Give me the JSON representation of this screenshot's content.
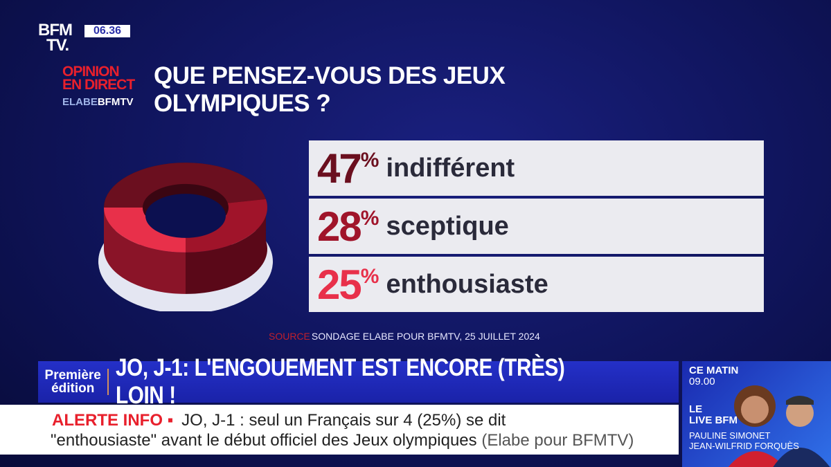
{
  "header": {
    "logo": "BFM TV.",
    "logo_line1": "BFM",
    "logo_line2": "TV.",
    "time": "06.36",
    "segment_line1": "OPINION",
    "segment_line2": "EN DIRECT",
    "partner": "ELABE",
    "partner_brand": "BFMTV",
    "title_line1": "QUE PENSEZ-VOUS DES JEUX",
    "title_line2": "OLYMPIQUES ?"
  },
  "chart_data": {
    "type": "pie",
    "style": "3d-donut",
    "title": "QUE PENSEZ-VOUS DES JEUX OLYMPIQUES ?",
    "categories": [
      "indifférent",
      "sceptique",
      "enthousiaste"
    ],
    "values": [
      47,
      28,
      25
    ],
    "unit": "%",
    "colors": [
      "#6b0f1f",
      "#a0142a",
      "#e8304a"
    ]
  },
  "source": {
    "label": "SOURCE",
    "text": "SONDAGE ELABE POUR BFMTV, 25 JUILLET 2024"
  },
  "banner": {
    "show_line1": "Première",
    "show_line2": "édition",
    "headline": "JO, J-1: L'ENGOUEMENT EST ENCORE (TRÈS) LOIN !"
  },
  "ticker": {
    "label": "ALERTE INFO ▪",
    "line1": "JO, J-1 : seul un Français sur 4 (25%) se dit",
    "line2": "\"enthousiaste\" avant le début officiel des Jeux olympiques",
    "attribution": "(Elabe pour BFMTV)"
  },
  "sidebar": {
    "slot1_title": "CE MATIN",
    "slot1_time": "09.00",
    "slot2_line1": "LE",
    "slot2_line2": "LIVE BFM",
    "host1": "PAULINE SIMONET",
    "host2": "JEAN-WILFRID FORQUÈS"
  }
}
